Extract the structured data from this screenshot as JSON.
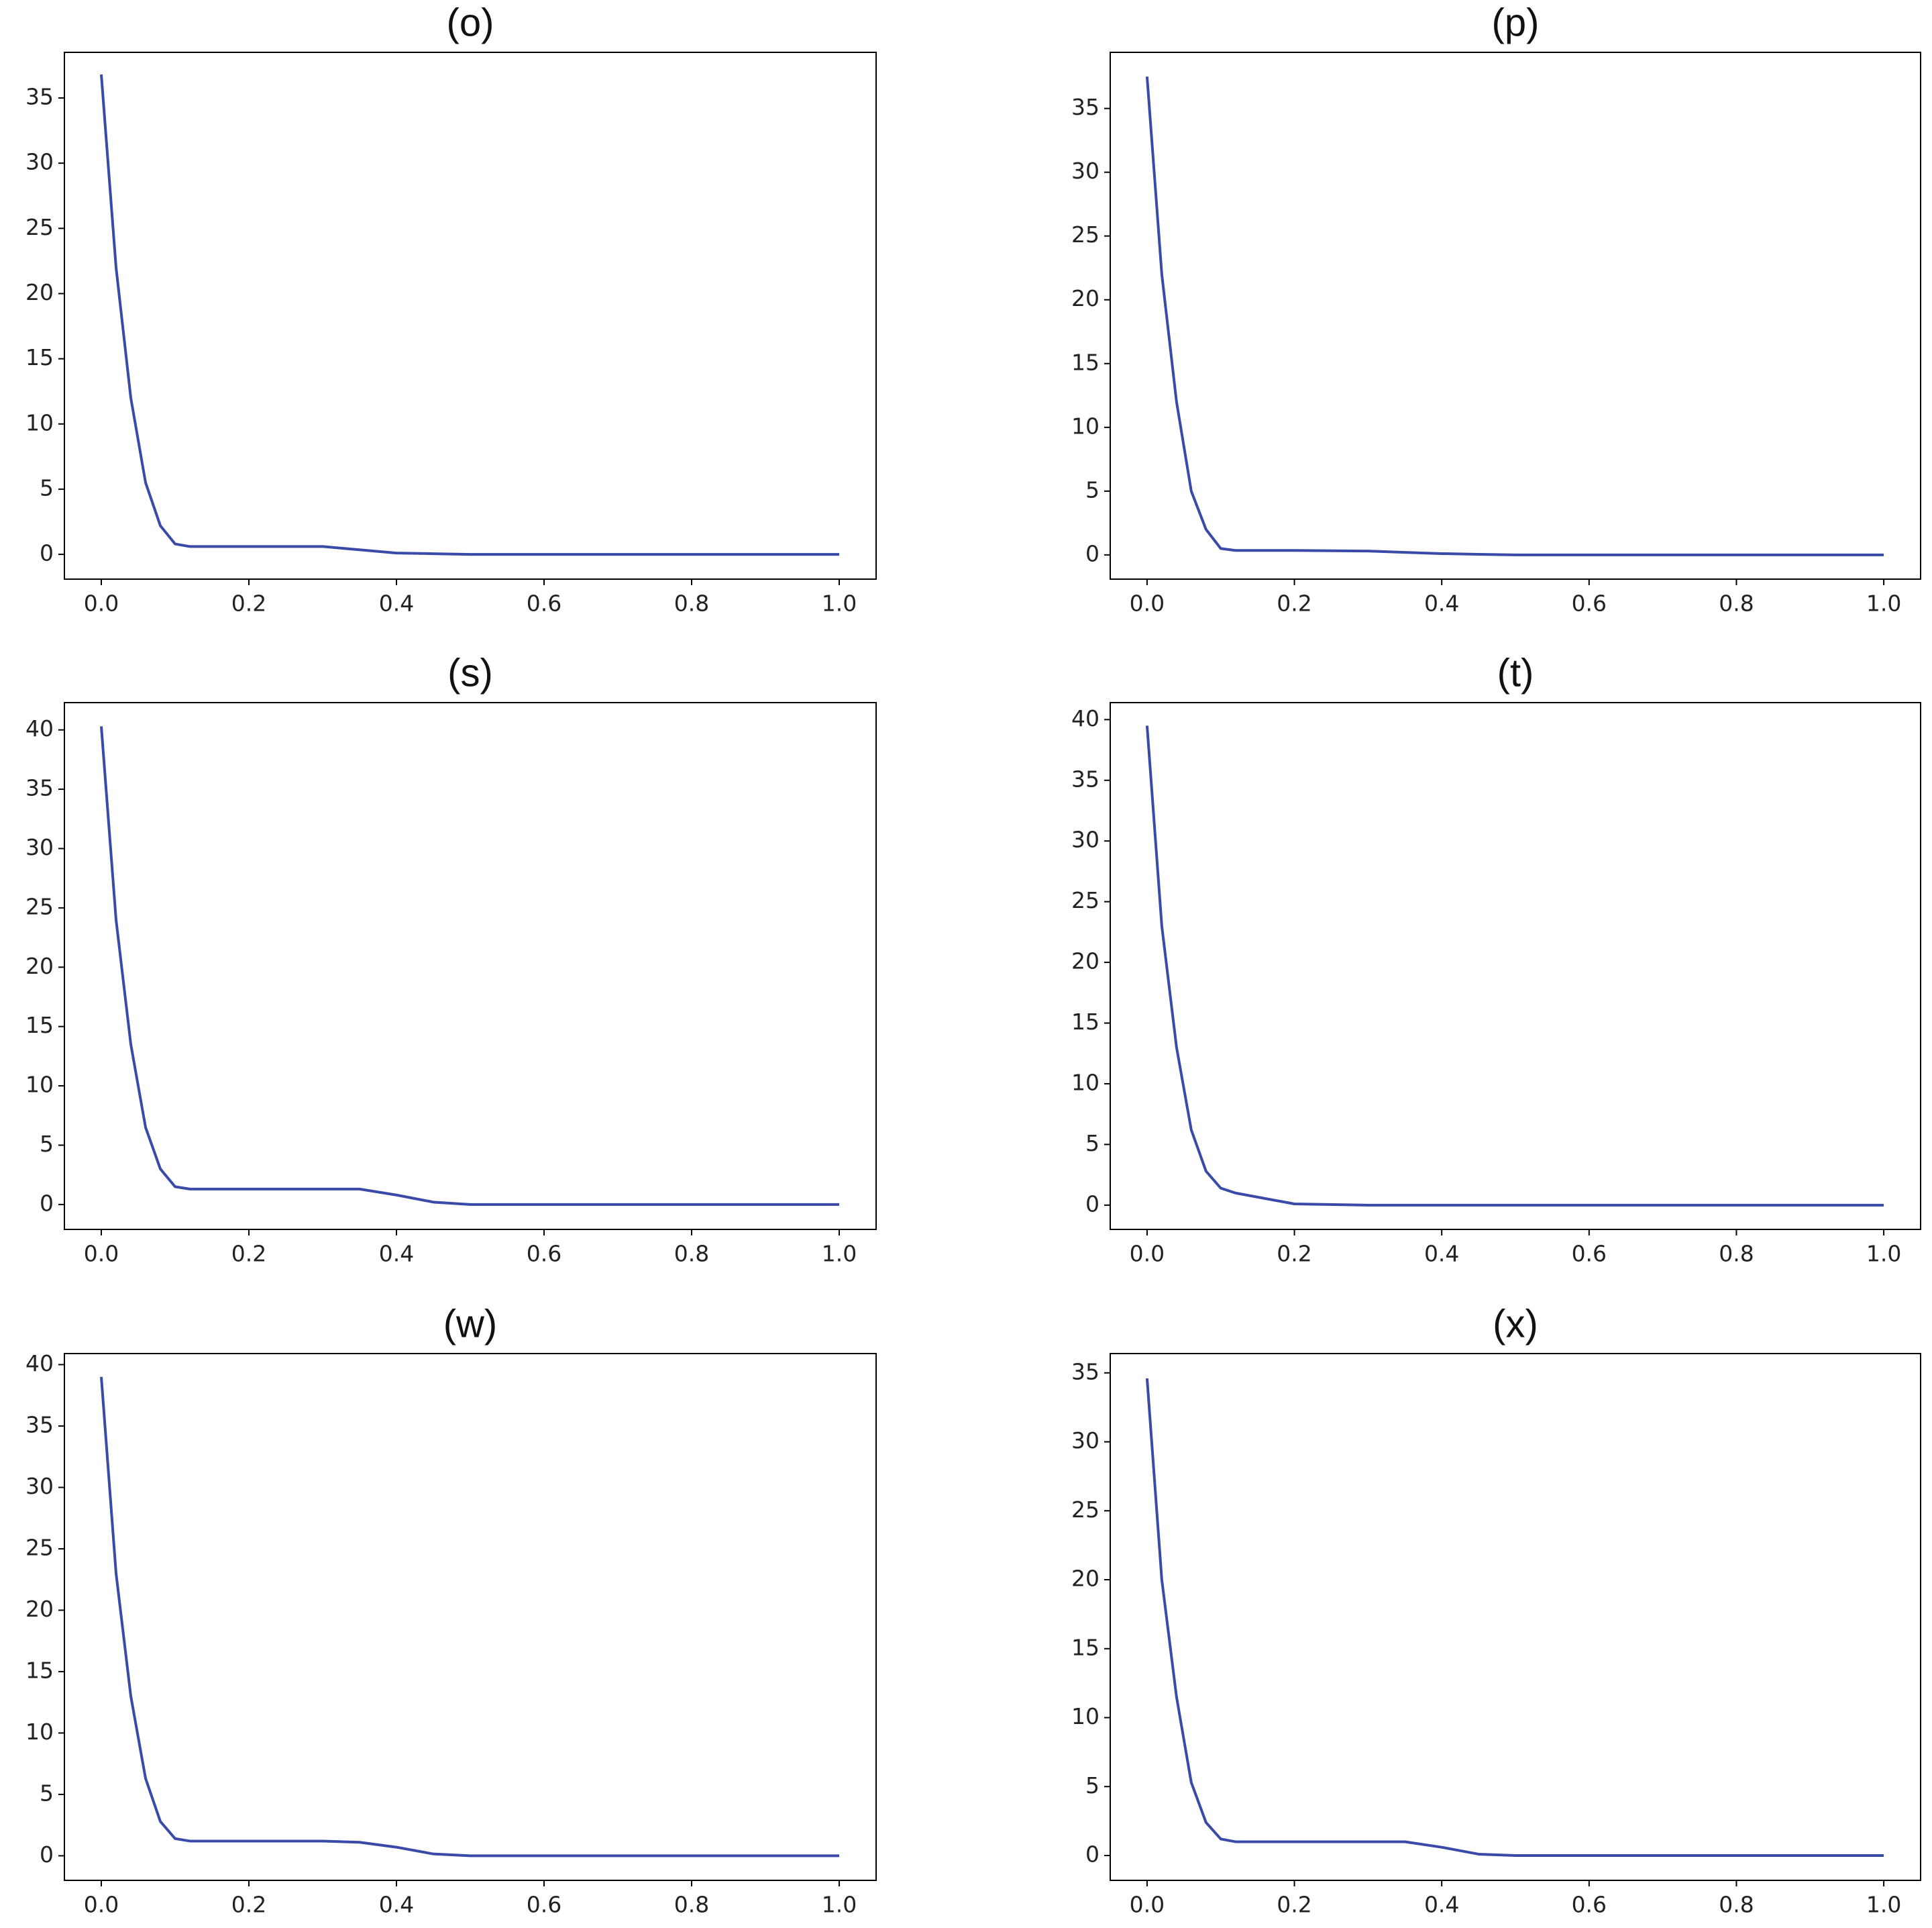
{
  "chart_data": [
    {
      "type": "line",
      "title": "(o)",
      "x": [
        0,
        0.02,
        0.04,
        0.06,
        0.08,
        0.1,
        0.12,
        0.2,
        0.3,
        0.35,
        0.4,
        0.45,
        0.5,
        0.6,
        0.8,
        1.0
      ],
      "series": [
        {
          "color": "#3a4aa8",
          "values": [
            36.8,
            22,
            12,
            5.5,
            2.2,
            0.8,
            0.6,
            0.6,
            0.6,
            0.35,
            0.1,
            0.05,
            0,
            0,
            0,
            0
          ]
        }
      ],
      "xlim": [
        -0.05,
        1.05
      ],
      "ylim": [
        -1.9,
        38.5
      ],
      "xticks": [
        {
          "value": 0,
          "label": "0.0"
        },
        0.2,
        0.4,
        0.6,
        0.8,
        {
          "value": 1,
          "label": "1.0"
        }
      ],
      "yticks": [
        0,
        5,
        10,
        15,
        20,
        25,
        30,
        35
      ],
      "grid": false
    },
    {
      "type": "line",
      "title": "(p)",
      "x": [
        0,
        0.02,
        0.04,
        0.06,
        0.08,
        0.1,
        0.12,
        0.2,
        0.3,
        0.35,
        0.4,
        0.45,
        0.5,
        0.6,
        0.8,
        1.0
      ],
      "series": [
        {
          "color": "#3a4aa8",
          "values": [
            37.5,
            22,
            12,
            5,
            2,
            0.5,
            0.35,
            0.35,
            0.3,
            0.2,
            0.1,
            0.05,
            0,
            0,
            0,
            0
          ]
        }
      ],
      "xlim": [
        -0.05,
        1.05
      ],
      "ylim": [
        -1.9,
        39.4
      ],
      "xticks": [
        {
          "value": 0,
          "label": "0.0"
        },
        0.2,
        0.4,
        0.6,
        0.8,
        {
          "value": 1,
          "label": "1.0"
        }
      ],
      "yticks": [
        0,
        5,
        10,
        15,
        20,
        25,
        30,
        35
      ],
      "grid": false
    },
    {
      "type": "line",
      "title": "(s)",
      "x": [
        0,
        0.02,
        0.04,
        0.06,
        0.08,
        0.1,
        0.12,
        0.2,
        0.3,
        0.35,
        0.4,
        0.45,
        0.5,
        0.6,
        0.8,
        1.0
      ],
      "series": [
        {
          "color": "#3a4aa8",
          "values": [
            40.3,
            24,
            13.5,
            6.5,
            3,
            1.5,
            1.3,
            1.3,
            1.3,
            1.3,
            0.8,
            0.2,
            0,
            0,
            0,
            0
          ]
        }
      ],
      "xlim": [
        -0.05,
        1.05
      ],
      "ylim": [
        -2.1,
        42.3
      ],
      "xticks": [
        {
          "value": 0,
          "label": "0.0"
        },
        0.2,
        0.4,
        0.6,
        0.8,
        {
          "value": 1,
          "label": "1.0"
        }
      ],
      "yticks": [
        0,
        5,
        10,
        15,
        20,
        25,
        30,
        35,
        40
      ],
      "grid": false
    },
    {
      "type": "line",
      "title": "(t)",
      "x": [
        0,
        0.02,
        0.04,
        0.06,
        0.08,
        0.1,
        0.12,
        0.2,
        0.3,
        0.35,
        0.4,
        0.45,
        0.5,
        0.6,
        0.8,
        1.0
      ],
      "series": [
        {
          "color": "#3a4aa8",
          "values": [
            39.5,
            23,
            13,
            6.2,
            2.8,
            1.4,
            1.0,
            0.1,
            0,
            0,
            0,
            0,
            0,
            0,
            0,
            0
          ]
        }
      ],
      "xlim": [
        -0.05,
        1.05
      ],
      "ylim": [
        -2.0,
        41.4
      ],
      "xticks": [
        {
          "value": 0,
          "label": "0.0"
        },
        0.2,
        0.4,
        0.6,
        0.8,
        {
          "value": 1,
          "label": "1.0"
        }
      ],
      "yticks": [
        0,
        5,
        10,
        15,
        20,
        25,
        30,
        35,
        40
      ],
      "grid": false
    },
    {
      "type": "line",
      "title": "(w)",
      "x": [
        0,
        0.02,
        0.04,
        0.06,
        0.08,
        0.1,
        0.12,
        0.2,
        0.3,
        0.35,
        0.4,
        0.45,
        0.5,
        0.6,
        0.8,
        1.0
      ],
      "series": [
        {
          "color": "#3a4aa8",
          "values": [
            39,
            23,
            13,
            6.3,
            2.8,
            1.4,
            1.2,
            1.2,
            1.2,
            1.1,
            0.7,
            0.15,
            0,
            0,
            0,
            0
          ]
        }
      ],
      "xlim": [
        -0.05,
        1.05
      ],
      "ylim": [
        -2.0,
        40.9
      ],
      "xticks": [
        {
          "value": 0,
          "label": "0.0"
        },
        0.2,
        0.4,
        0.6,
        0.8,
        {
          "value": 1,
          "label": "1.0"
        }
      ],
      "yticks": [
        0,
        5,
        10,
        15,
        20,
        25,
        30,
        35,
        40
      ],
      "grid": false
    },
    {
      "type": "line",
      "title": "(x)",
      "x": [
        0,
        0.02,
        0.04,
        0.06,
        0.08,
        0.1,
        0.12,
        0.2,
        0.3,
        0.35,
        0.4,
        0.45,
        0.5,
        0.6,
        0.8,
        1.0
      ],
      "series": [
        {
          "color": "#3a4aa8",
          "values": [
            34.6,
            20,
            11.5,
            5.3,
            2.4,
            1.2,
            1.0,
            1.0,
            1.0,
            1.0,
            0.6,
            0.1,
            0,
            0,
            0,
            0
          ]
        }
      ],
      "xlim": [
        -0.05,
        1.05
      ],
      "ylim": [
        -1.8,
        36.4
      ],
      "xticks": [
        {
          "value": 0,
          "label": "0.0"
        },
        0.2,
        0.4,
        0.6,
        0.8,
        {
          "value": 1,
          "label": "1.0"
        }
      ],
      "yticks": [
        0,
        5,
        10,
        15,
        20,
        25,
        30,
        35
      ],
      "grid": false
    }
  ]
}
